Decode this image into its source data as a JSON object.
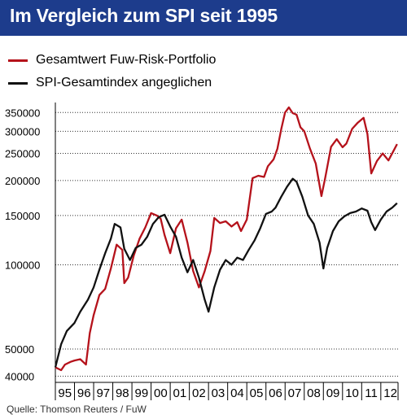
{
  "title": "Im Vergleich zum SPI seit 1995",
  "source": "Quelle: Thomson Reuters / FuW",
  "colors": {
    "title_bg": "#1d3c8c",
    "title_fg": "#ffffff",
    "series_portfolio": "#b5121b",
    "series_spi": "#111111"
  },
  "chart_data": {
    "type": "line",
    "title": "Im Vergleich zum SPI seit 1995",
    "xlabel": "",
    "ylabel": "",
    "y_scale": "log",
    "ylim": [
      38000,
      380000
    ],
    "xlim": [
      1995.0,
      2012.9
    ],
    "yticks": [
      350000,
      300000,
      250000,
      200000,
      150000,
      100000,
      50000,
      40000
    ],
    "ytick_labels": [
      "350000",
      "300000",
      "250000",
      "200000",
      "150000",
      "100000",
      "50000",
      "40000"
    ],
    "xtick_labels": [
      "95",
      "96",
      "97",
      "98",
      "99",
      "00",
      "01",
      "02",
      "03",
      "04",
      "05",
      "06",
      "07",
      "08",
      "09",
      "10",
      "11",
      "12"
    ],
    "grid": "horizontal dotted",
    "legend_position": "top-left",
    "series": [
      {
        "name": "Gesamtwert Fuw-Risk-Portfolio",
        "color": "#b5121b",
        "x": [
          1995.0,
          1995.3,
          1995.5,
          1995.8,
          1996.0,
          1996.3,
          1996.6,
          1996.8,
          1997.0,
          1997.3,
          1997.6,
          1997.9,
          1998.2,
          1998.5,
          1998.6,
          1998.8,
          1999.1,
          1999.4,
          1999.7,
          2000.0,
          2000.3,
          2000.5,
          2000.7,
          2001.0,
          2001.3,
          2001.6,
          2001.9,
          2002.2,
          2002.5,
          2002.8,
          2003.1,
          2003.3,
          2003.6,
          2003.9,
          2004.2,
          2004.5,
          2004.7,
          2005.0,
          2005.3,
          2005.6,
          2005.9,
          2006.1,
          2006.4,
          2006.6,
          2006.8,
          2007.0,
          2007.2,
          2007.4,
          2007.6,
          2007.8,
          2008.0,
          2008.3,
          2008.6,
          2008.9,
          2009.1,
          2009.4,
          2009.7,
          2010.0,
          2010.2,
          2010.5,
          2010.8,
          2011.1,
          2011.3,
          2011.5,
          2011.8,
          2012.1,
          2012.4,
          2012.7,
          2012.85
        ],
        "values": [
          43000,
          42000,
          44000,
          45000,
          45500,
          46000,
          44000,
          57000,
          66000,
          78000,
          82000,
          97000,
          118000,
          113000,
          86000,
          90000,
          108000,
          124000,
          136000,
          153000,
          150000,
          146000,
          128000,
          110000,
          135000,
          145000,
          120000,
          95000,
          83000,
          95000,
          112000,
          147000,
          141000,
          143000,
          137000,
          142000,
          132000,
          145000,
          204000,
          208000,
          206000,
          225000,
          238000,
          260000,
          305000,
          350000,
          365000,
          348000,
          344000,
          310000,
          300000,
          260000,
          230000,
          176000,
          205000,
          264000,
          281000,
          263000,
          271000,
          306000,
          322000,
          335000,
          293000,
          212000,
          235000,
          250000,
          236000,
          258000,
          270000
        ]
      },
      {
        "name": "SPI-Gesamtindex angeglichen",
        "color": "#111111",
        "x": [
          1995.0,
          1995.3,
          1995.6,
          1996.0,
          1996.3,
          1996.7,
          1997.0,
          1997.3,
          1997.6,
          1997.9,
          1998.1,
          1998.4,
          1998.6,
          1998.9,
          1999.2,
          1999.5,
          1999.8,
          2000.1,
          2000.4,
          2000.7,
          2001.0,
          2001.3,
          2001.6,
          2001.9,
          2002.2,
          2002.5,
          2002.8,
          2003.0,
          2003.3,
          2003.6,
          2003.9,
          2004.2,
          2004.5,
          2004.8,
          2005.1,
          2005.4,
          2005.7,
          2006.0,
          2006.3,
          2006.5,
          2006.8,
          2007.1,
          2007.4,
          2007.6,
          2007.9,
          2008.2,
          2008.5,
          2008.8,
          2009.0,
          2009.2,
          2009.5,
          2009.8,
          2010.1,
          2010.4,
          2010.7,
          2011.0,
          2011.3,
          2011.5,
          2011.7,
          2012.0,
          2012.3,
          2012.6,
          2012.85
        ],
        "values": [
          43000,
          52000,
          58000,
          62000,
          68000,
          75000,
          83000,
          96000,
          110000,
          124000,
          140000,
          136000,
          114000,
          104000,
          115000,
          118000,
          126000,
          140000,
          148000,
          151000,
          137000,
          126000,
          106000,
          94000,
          104000,
          90000,
          75000,
          68000,
          83000,
          96000,
          104000,
          100000,
          106000,
          104000,
          113000,
          122000,
          135000,
          152000,
          155000,
          160000,
          175000,
          190000,
          203000,
          198000,
          175000,
          150000,
          140000,
          120000,
          97000,
          115000,
          132000,
          143000,
          149000,
          153000,
          155000,
          159000,
          156000,
          142000,
          133000,
          145000,
          155000,
          160000,
          166000
        ]
      }
    ]
  }
}
